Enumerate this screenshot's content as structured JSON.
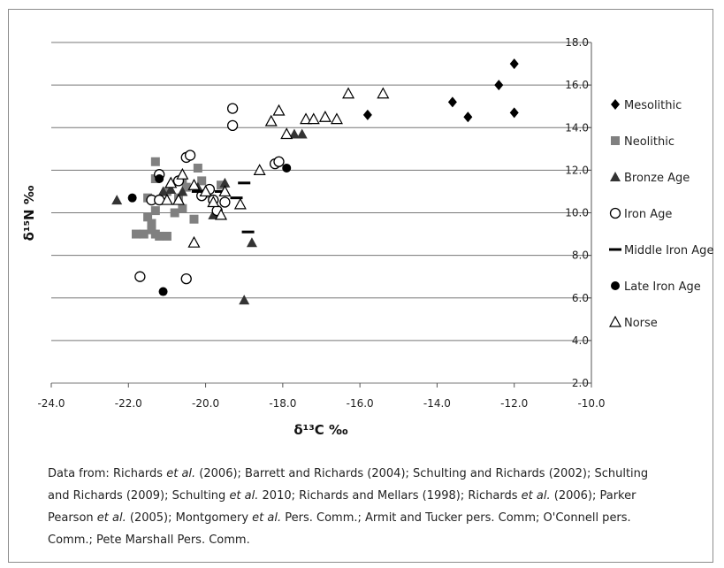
{
  "chart_data": {
    "type": "scatter",
    "xlabel": "δ¹³C ‰",
    "ylabel": "δ¹⁵N ‰",
    "xlim": [
      -24,
      -10
    ],
    "ylim": [
      2,
      18
    ],
    "x_ticks": [
      "-24.0",
      "-22.0",
      "-20.0",
      "-18.0",
      "-16.0",
      "-14.0",
      "-12.0",
      "-10.0"
    ],
    "y_ticks": [
      "2.0",
      "4.0",
      "6.0",
      "8.0",
      "10.0",
      "12.0",
      "14.0",
      "16.0",
      "18.0"
    ],
    "grid": true,
    "legend_position": "right",
    "series": [
      {
        "name": "Mesolithic",
        "marker": "diamond",
        "color": "#000000",
        "points": [
          [
            -15.8,
            14.6
          ],
          [
            -13.6,
            15.2
          ],
          [
            -13.2,
            14.5
          ],
          [
            -12.4,
            16.0
          ],
          [
            -12.0,
            17.0
          ],
          [
            -12.0,
            14.7
          ]
        ]
      },
      {
        "name": "Neolithic",
        "marker": "square",
        "color": "#808080",
        "points": [
          [
            -21.8,
            9.0
          ],
          [
            -21.6,
            9.0
          ],
          [
            -21.5,
            10.7
          ],
          [
            -21.5,
            9.8
          ],
          [
            -21.4,
            9.5
          ],
          [
            -21.4,
            9.2
          ],
          [
            -21.3,
            12.4
          ],
          [
            -21.3,
            11.6
          ],
          [
            -21.3,
            10.1
          ],
          [
            -21.3,
            9.0
          ],
          [
            -21.2,
            8.9
          ],
          [
            -21.0,
            11.0
          ],
          [
            -21.0,
            8.9
          ],
          [
            -20.8,
            10.0
          ],
          [
            -20.7,
            10.7
          ],
          [
            -20.6,
            11.5
          ],
          [
            -20.6,
            10.2
          ],
          [
            -20.5,
            11.2
          ],
          [
            -20.3,
            9.7
          ],
          [
            -20.2,
            12.1
          ],
          [
            -20.1,
            11.5
          ],
          [
            -20.0,
            10.9
          ],
          [
            -19.6,
            11.3
          ]
        ]
      },
      {
        "name": "Bronze Age",
        "marker": "triangle",
        "color": "#333333",
        "points": [
          [
            -22.3,
            10.6
          ],
          [
            -21.1,
            11.0
          ],
          [
            -20.9,
            11.1
          ],
          [
            -20.6,
            11.0
          ],
          [
            -20.2,
            11.2
          ],
          [
            -19.8,
            9.9
          ],
          [
            -19.5,
            11.4
          ],
          [
            -19.0,
            5.9
          ],
          [
            -18.8,
            8.6
          ],
          [
            -17.7,
            13.7
          ],
          [
            -17.5,
            13.7
          ]
        ]
      },
      {
        "name": "Iron Age",
        "marker": "circle-open",
        "color": "#000000",
        "points": [
          [
            -21.7,
            7.0
          ],
          [
            -21.4,
            10.6
          ],
          [
            -21.2,
            11.8
          ],
          [
            -21.2,
            10.6
          ],
          [
            -20.7,
            11.5
          ],
          [
            -20.5,
            12.6
          ],
          [
            -20.5,
            6.9
          ],
          [
            -20.4,
            12.7
          ],
          [
            -20.1,
            10.8
          ],
          [
            -19.9,
            11.1
          ],
          [
            -19.8,
            10.6
          ],
          [
            -19.7,
            10.1
          ],
          [
            -19.5,
            10.5
          ],
          [
            -19.3,
            14.9
          ],
          [
            -19.3,
            14.1
          ],
          [
            -18.2,
            12.3
          ],
          [
            -18.1,
            12.4
          ]
        ]
      },
      {
        "name": "Middle Iron Age",
        "marker": "dash",
        "color": "#000000",
        "points": [
          [
            -20.2,
            11.0
          ],
          [
            -19.6,
            11.0
          ],
          [
            -19.0,
            11.4
          ],
          [
            -19.2,
            10.7
          ],
          [
            -18.9,
            9.1
          ]
        ]
      },
      {
        "name": "Late Iron Age",
        "marker": "circle",
        "color": "#000000",
        "points": [
          [
            -21.9,
            10.7
          ],
          [
            -21.2,
            11.6
          ],
          [
            -21.1,
            6.3
          ],
          [
            -17.9,
            12.1
          ]
        ]
      },
      {
        "name": "Norse",
        "marker": "triangle-open",
        "color": "#000000",
        "points": [
          [
            -21.0,
            10.6
          ],
          [
            -20.9,
            11.4
          ],
          [
            -20.7,
            10.6
          ],
          [
            -20.6,
            11.8
          ],
          [
            -20.3,
            11.3
          ],
          [
            -20.3,
            8.6
          ],
          [
            -20.0,
            11.0
          ],
          [
            -19.8,
            10.5
          ],
          [
            -19.6,
            9.9
          ],
          [
            -19.5,
            11.0
          ],
          [
            -19.1,
            10.4
          ],
          [
            -18.6,
            12.0
          ],
          [
            -18.3,
            14.3
          ],
          [
            -18.1,
            14.8
          ],
          [
            -17.9,
            13.7
          ],
          [
            -17.4,
            14.4
          ],
          [
            -17.2,
            14.4
          ],
          [
            -16.9,
            14.5
          ],
          [
            -16.6,
            14.4
          ],
          [
            -16.3,
            15.6
          ],
          [
            -15.4,
            15.6
          ]
        ]
      }
    ]
  },
  "caption": {
    "line1_a": "Data from: Richards ",
    "etal": "et al.",
    "line1_b": " (2006); Barrett and Richards (2004); Schulting and Richards (2002); Schulting",
    "line2_a": "and Richards (2009); Schulting ",
    "line2_b": " 2010; Richards and Mellars (1998); Richards ",
    "line2_c": " (2006); Parker",
    "line3_a": "Pearson ",
    "line3_b": " (2005); Montgomery ",
    "line3_c": " Pers. Comm.; Armit and Tucker pers. Comm; O'Connell pers.",
    "line4": "Comm.; Pete Marshall Pers.  Comm."
  }
}
